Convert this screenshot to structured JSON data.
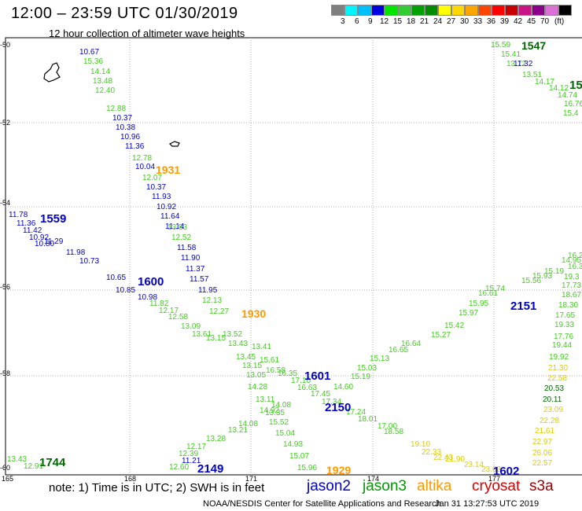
{
  "header": {
    "title": "12:00 – 23:59 UTC 01/30/2019",
    "subtitle": "12 hour collection of altimeter wave heights"
  },
  "legend": {
    "colors": [
      "#7f7f7f",
      "#00f5ff",
      "#00bfff",
      "#0000e0",
      "#00e600",
      "#32cd32",
      "#00a000",
      "#008c00",
      "#ffff00",
      "#ffd700",
      "#ffa500",
      "#ff4500",
      "#ff0000",
      "#c80000",
      "#c71585",
      "#8b008b",
      "#da70d6",
      "#000000"
    ],
    "labels": [
      "3",
      "6",
      "9",
      "12",
      "15",
      "18",
      "21",
      "24",
      "27",
      "30",
      "33",
      "36",
      "39",
      "42",
      "45",
      "70",
      "(ft)"
    ]
  },
  "axes": {
    "y_labels": [
      "-50",
      "-52",
      "-54",
      "-56",
      "-58",
      "-60"
    ],
    "x_labels": [
      "165",
      "168",
      "171",
      "174",
      "177"
    ]
  },
  "note": "note:  1) Time is in UTC;  2) SWH is in feet",
  "satellites": [
    {
      "name": "jason2",
      "color": "#0000cc"
    },
    {
      "name": "jason3",
      "color": "#009900"
    },
    {
      "name": "altika",
      "color": "#ff9900"
    },
    {
      "name": "cryosat",
      "color": "#dd0000"
    },
    {
      "name": "s3a",
      "color": "#990000"
    }
  ],
  "footer": {
    "credit": "NOAA/NESDIS Center for Satellite Applications and Research",
    "timestamp": "Jan 31 13:27:53 UTC 2019"
  },
  "tracks": {
    "pass_a": {
      "color": "#0000cc",
      "values": [
        "10.67",
        "10.37",
        "10.38",
        "10.96",
        "11.36",
        "10.04",
        "10.37",
        "11.93",
        "10.92",
        "11.64",
        "11.14",
        "11.58",
        "11.90",
        "11.37",
        "11.57",
        "11.95"
      ]
    },
    "pass_b": {
      "color": "#44cc22",
      "values": [
        "15.36",
        "14.14",
        "13.48",
        "12.40",
        "12.88",
        "12.78",
        "12.07",
        "13.83",
        "12.52",
        "12.13",
        "12.27",
        "13.52",
        "13.43",
        "13.45",
        "13.41",
        "13.15",
        "13.05",
        "14.08"
      ]
    },
    "pass_c": {
      "color": "#44cc22",
      "values": [
        "14.28",
        "13.11",
        "14.92",
        "13.35",
        "15.52",
        "15.04",
        "14.93",
        "15.07",
        "15.96"
      ]
    },
    "pass_d": {
      "color": "#0000cc",
      "values": [
        "11.78",
        "11.36",
        "11.42",
        "10.92",
        "10.80",
        "11.29",
        "11.98",
        "10.73",
        "10.65",
        "10.85",
        "10.98"
      ]
    },
    "pass_e": {
      "color": "#44cc22",
      "values": [
        "11.82",
        "12.17",
        "12.58",
        "13.09",
        "13.61",
        "13.15",
        "15.61",
        "16.58",
        "16.35",
        "17.10",
        "16.63",
        "17.45",
        "17.34",
        "17.24",
        "18.01",
        "17.00",
        "18.58"
      ]
    },
    "pass_f": {
      "color": "#44cc22",
      "values": [
        "13.43",
        "12.91",
        "12.60",
        "12.39",
        "12.17",
        "13.28",
        "13.21",
        "14.08",
        "14.60",
        "15.19",
        "15.03",
        "15.13",
        "16.65",
        "16.64",
        "15.27",
        "15.42",
        "15.97",
        "15.95",
        "16.61",
        "15.74",
        "15.56",
        "15.93",
        "15.19",
        "14.95",
        "16.2",
        "16.3",
        "19.3",
        "17.73",
        "18.67",
        "18.30",
        "17.65",
        "19.33",
        "17.76",
        "19.44",
        "19.92"
      ]
    },
    "pass_g": {
      "color": "#0000cc",
      "values": [
        "11.21"
      ]
    },
    "pass_h": {
      "color": "#44cc22",
      "values": [
        "15.59",
        "15.41",
        "13.72",
        "13.51",
        "14.17",
        "14.12",
        "14.74",
        "16.76",
        "15.4"
      ]
    },
    "pass_i": {
      "color": "#0000cc",
      "values": [
        "11.32"
      ]
    },
    "pass_j": {
      "color": "#ddcc00",
      "values": [
        "19.10",
        "22.33",
        "22.43",
        "21.90",
        "23.14",
        "23.63"
      ]
    },
    "pass_k": {
      "color": "#006600",
      "values": [
        "20.53",
        "20.11"
      ]
    },
    "pass_l": {
      "color": "#ddcc00",
      "values": [
        "21.30",
        "22.58",
        "23.09",
        "22.28",
        "21.61",
        "22.97",
        "26.06",
        "22.57"
      ]
    }
  },
  "time_marks": [
    {
      "label": "1559",
      "color": "#0000cc"
    },
    {
      "label": "1600",
      "color": "#0000cc"
    },
    {
      "label": "1601",
      "color": "#0000cc"
    },
    {
      "label": "1602",
      "color": "#0000cc"
    },
    {
      "label": "1931",
      "color": "#ff9900"
    },
    {
      "label": "1930",
      "color": "#ff9900"
    },
    {
      "label": "1929",
      "color": "#ff9900"
    },
    {
      "label": "2149",
      "color": "#0000cc"
    },
    {
      "label": "2150",
      "color": "#0000cc"
    },
    {
      "label": "2151",
      "color": "#0000cc"
    },
    {
      "label": "1547",
      "color": "#006600"
    },
    {
      "label": "1744",
      "color": "#006600"
    },
    {
      "label": "15",
      "color": "#006600"
    }
  ]
}
